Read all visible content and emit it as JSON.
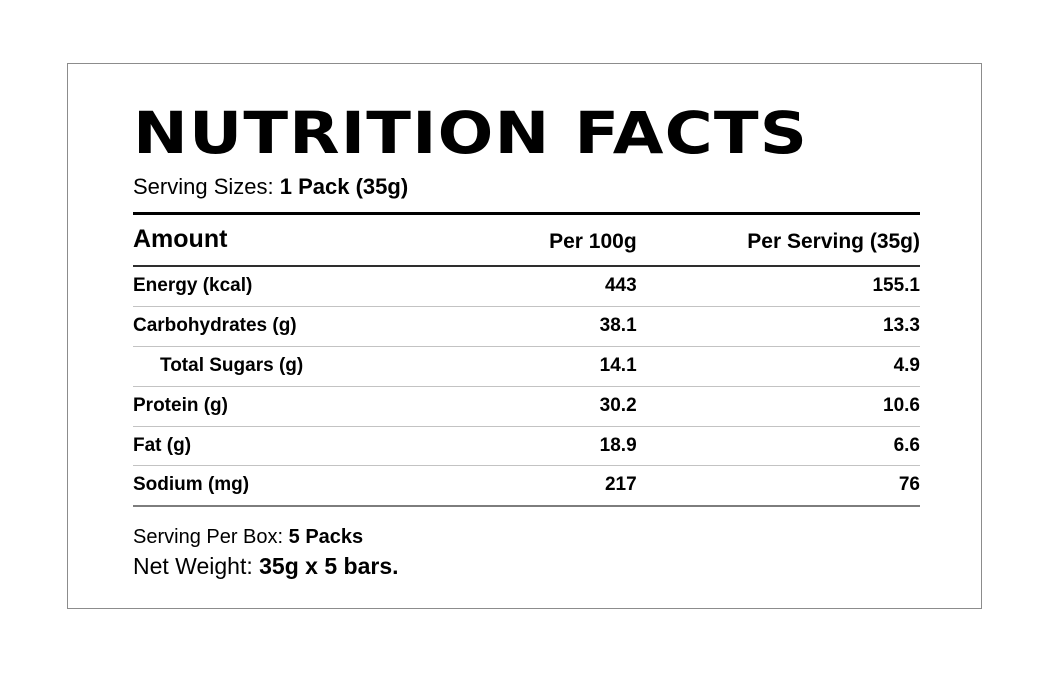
{
  "label": {
    "title": "NUTRITION FACTS",
    "serving_sizes_label": "Serving Sizes:",
    "serving_sizes_value": "1 Pack (35g)",
    "table": {
      "columns": [
        "Amount",
        "Per 100g",
        "Per Serving (35g)"
      ],
      "rows": [
        {
          "name": "Energy (kcal)",
          "per_100g": "443",
          "per_serving": "155.1",
          "indent": false
        },
        {
          "name": "Carbohydrates (g)",
          "per_100g": "38.1",
          "per_serving": "13.3",
          "indent": false
        },
        {
          "name": "Total Sugars (g)",
          "per_100g": "14.1",
          "per_serving": "4.9",
          "indent": true
        },
        {
          "name": "Protein (g)",
          "per_100g": "30.2",
          "per_serving": "10.6",
          "indent": false
        },
        {
          "name": "Fat (g)",
          "per_100g": "18.9",
          "per_serving": "6.6",
          "indent": false
        },
        {
          "name": "Sodium (mg)",
          "per_100g": "217",
          "per_serving": "76",
          "indent": false
        }
      ]
    },
    "serving_per_box_label": "Serving Per Box:",
    "serving_per_box_value": "5 Packs",
    "net_weight_label": "Net Weight:",
    "net_weight_value": "35g x 5 bars.",
    "colors": {
      "text": "#000000",
      "rule_top": "#000000",
      "rule_header": "#2e2e2e",
      "rule_row": "#c3c3c3",
      "rule_bottom": "#7d7d7d",
      "panel_border": "#8c8c8c"
    }
  }
}
